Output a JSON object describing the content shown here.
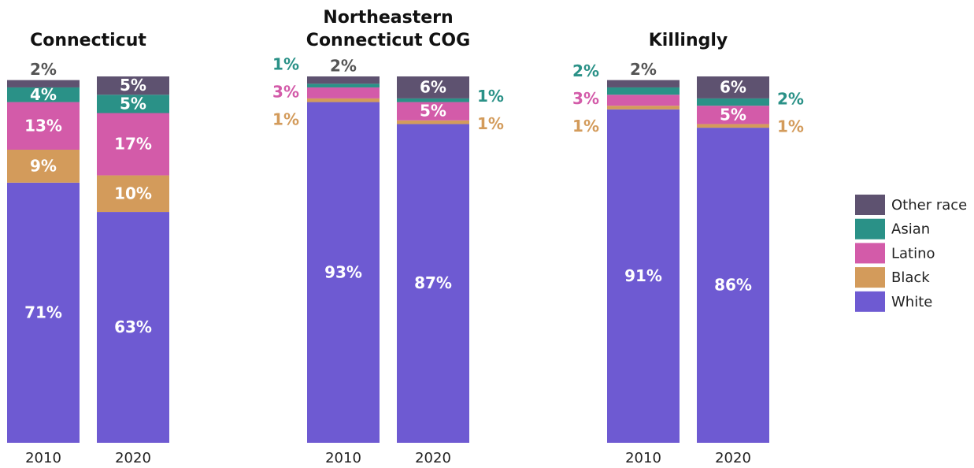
{
  "chart_data": [
    {
      "type": "bar",
      "stacked": true,
      "title": "Connecticut",
      "categories": [
        "2010",
        "2020"
      ],
      "ylim": [
        0,
        100
      ],
      "series": [
        {
          "name": "White",
          "color": "#6e5ad2",
          "values": [
            71,
            63
          ],
          "value_labels": [
            "71%",
            "63%"
          ]
        },
        {
          "name": "Black",
          "color": "#d39b5b",
          "values": [
            9,
            10
          ],
          "value_labels": [
            "9%",
            "10%"
          ]
        },
        {
          "name": "Latino",
          "color": "#d35ba9",
          "values": [
            13,
            17
          ],
          "value_labels": [
            "13%",
            "17%"
          ]
        },
        {
          "name": "Asian",
          "color": "#2a9187",
          "values": [
            4,
            5
          ],
          "value_labels": [
            "4%",
            "5%"
          ]
        },
        {
          "name": "Other race",
          "color": "#5e5270",
          "values": [
            2,
            5
          ],
          "value_labels": [
            "2%",
            "5%"
          ]
        }
      ]
    },
    {
      "type": "bar",
      "stacked": true,
      "title": "Northeastern Connecticut COG",
      "categories": [
        "2010",
        "2020"
      ],
      "ylim": [
        0,
        100
      ],
      "series": [
        {
          "name": "White",
          "color": "#6e5ad2",
          "values": [
            93,
            87
          ],
          "value_labels": [
            "93%",
            "87%"
          ]
        },
        {
          "name": "Black",
          "color": "#d39b5b",
          "values": [
            1,
            1
          ],
          "value_labels": [
            "1%",
            "1%"
          ]
        },
        {
          "name": "Latino",
          "color": "#d35ba9",
          "values": [
            3,
            5
          ],
          "value_labels": [
            "3%",
            "5%"
          ]
        },
        {
          "name": "Asian",
          "color": "#2a9187",
          "values": [
            1,
            1
          ],
          "value_labels": [
            "1%",
            "1%"
          ]
        },
        {
          "name": "Other race",
          "color": "#5e5270",
          "values": [
            2,
            6
          ],
          "value_labels": [
            "2%",
            "6%"
          ]
        }
      ]
    },
    {
      "type": "bar",
      "stacked": true,
      "title": "Killingly",
      "categories": [
        "2010",
        "2020"
      ],
      "ylim": [
        0,
        100
      ],
      "series": [
        {
          "name": "White",
          "color": "#6e5ad2",
          "values": [
            91,
            86
          ],
          "value_labels": [
            "91%",
            "86%"
          ]
        },
        {
          "name": "Black",
          "color": "#d39b5b",
          "values": [
            1,
            1
          ],
          "value_labels": [
            "1%",
            "1%"
          ]
        },
        {
          "name": "Latino",
          "color": "#d35ba9",
          "values": [
            3,
            5
          ],
          "value_labels": [
            "3%",
            "5%"
          ]
        },
        {
          "name": "Asian",
          "color": "#2a9187",
          "values": [
            2,
            2
          ],
          "value_labels": [
            "2%",
            "2%"
          ]
        },
        {
          "name": "Other race",
          "color": "#5e5270",
          "values": [
            2,
            6
          ],
          "value_labels": [
            "2%",
            "6%"
          ]
        }
      ]
    }
  ]
}
